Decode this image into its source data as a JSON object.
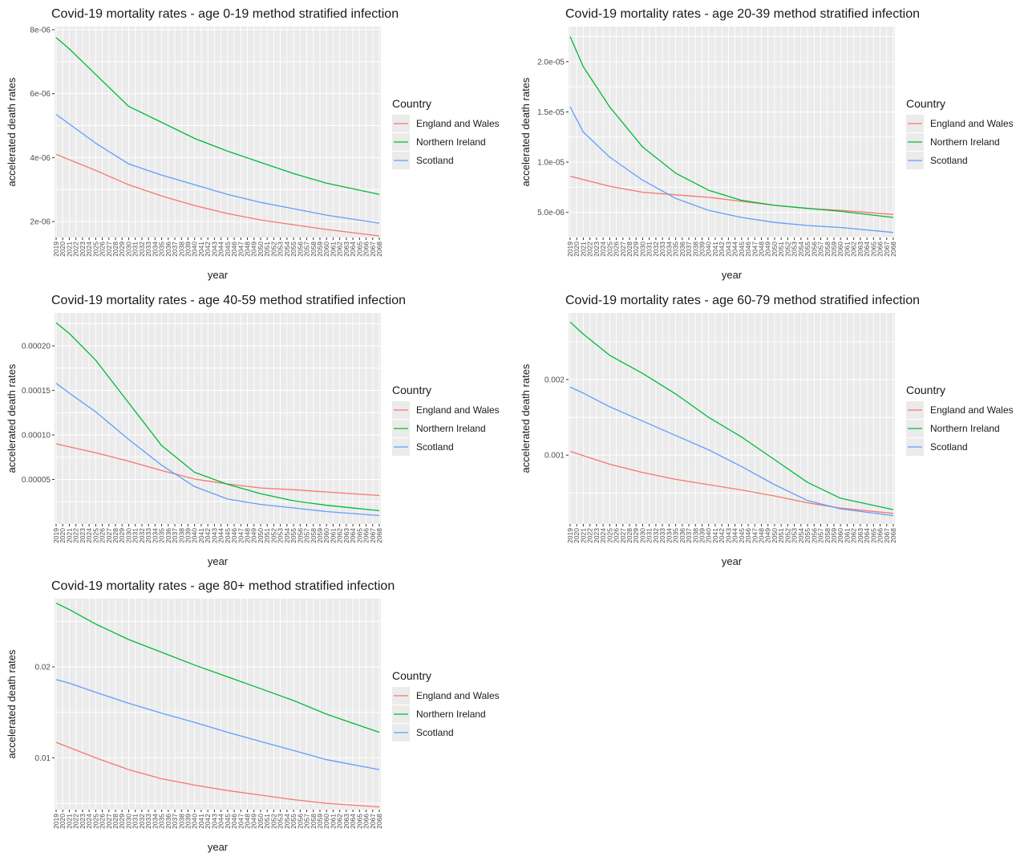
{
  "colors": {
    "panel_bg": "#ebebeb",
    "grid_major": "#ffffff",
    "England and Wales": "#f8766d",
    "Northern Ireland": "#00ba38",
    "Scotland": "#619cff"
  },
  "chart_data": [
    {
      "type": "line",
      "title": "Covid-19 mortality rates - age 0-19 method stratified infection",
      "xlabel": "year",
      "ylabel": "accelerated death rates",
      "legend_title": "Country",
      "legend_position": "right",
      "grid": true,
      "x_start": 2019,
      "x_end": 2068,
      "ylim": [
        1.5e-06,
        8.1e-06
      ],
      "yticks": [
        2e-06,
        4e-06,
        6e-06,
        8e-06
      ],
      "ytick_labels": [
        "2e-06",
        "4e-06",
        "6e-06",
        "8e-06"
      ],
      "series": [
        {
          "name": "England and Wales",
          "points": [
            [
              2019,
              4.1e-06
            ],
            [
              2025,
              3.6e-06
            ],
            [
              2030,
              3.15e-06
            ],
            [
              2035,
              2.8e-06
            ],
            [
              2040,
              2.5e-06
            ],
            [
              2045,
              2.25e-06
            ],
            [
              2050,
              2.05e-06
            ],
            [
              2055,
              1.9e-06
            ],
            [
              2060,
              1.75e-06
            ],
            [
              2068,
              1.55e-06
            ]
          ]
        },
        {
          "name": "Northern Ireland",
          "points": [
            [
              2019,
              7.75e-06
            ],
            [
              2021,
              7.4e-06
            ],
            [
              2025,
              6.6e-06
            ],
            [
              2030,
              5.6e-06
            ],
            [
              2035,
              5.1e-06
            ],
            [
              2040,
              4.6e-06
            ],
            [
              2045,
              4.2e-06
            ],
            [
              2050,
              3.85e-06
            ],
            [
              2055,
              3.5e-06
            ],
            [
              2060,
              3.2e-06
            ],
            [
              2068,
              2.85e-06
            ]
          ]
        },
        {
          "name": "Scotland",
          "points": [
            [
              2019,
              5.35e-06
            ],
            [
              2021,
              5.05e-06
            ],
            [
              2025,
              4.45e-06
            ],
            [
              2030,
              3.8e-06
            ],
            [
              2035,
              3.45e-06
            ],
            [
              2040,
              3.15e-06
            ],
            [
              2045,
              2.85e-06
            ],
            [
              2050,
              2.6e-06
            ],
            [
              2055,
              2.4e-06
            ],
            [
              2060,
              2.2e-06
            ],
            [
              2068,
              1.95e-06
            ]
          ]
        }
      ]
    },
    {
      "type": "line",
      "title": "Covid-19 mortality rates - age 20-39 method stratified infection",
      "xlabel": "year",
      "ylabel": "accelerated death rates",
      "legend_title": "Country",
      "legend_position": "right",
      "grid": true,
      "x_start": 2019,
      "x_end": 2068,
      "ylim": [
        2.5e-06,
        2.35e-05
      ],
      "yticks": [
        5e-06,
        1e-05,
        1.5e-05,
        2e-05
      ],
      "ytick_labels": [
        "5.0e-06",
        "1.0e-05",
        "1.5e-05",
        "2.0e-05"
      ],
      "series": [
        {
          "name": "England and Wales",
          "points": [
            [
              2019,
              8.6e-06
            ],
            [
              2025,
              7.6e-06
            ],
            [
              2030,
              7e-06
            ],
            [
              2035,
              6.75e-06
            ],
            [
              2040,
              6.5e-06
            ],
            [
              2045,
              6.1e-06
            ],
            [
              2050,
              5.7e-06
            ],
            [
              2055,
              5.4e-06
            ],
            [
              2060,
              5.2e-06
            ],
            [
              2068,
              4.8e-06
            ]
          ]
        },
        {
          "name": "Northern Ireland",
          "points": [
            [
              2019,
              2.25e-05
            ],
            [
              2021,
              1.95e-05
            ],
            [
              2025,
              1.55e-05
            ],
            [
              2030,
              1.15e-05
            ],
            [
              2035,
              8.9e-06
            ],
            [
              2040,
              7.2e-06
            ],
            [
              2045,
              6.2e-06
            ],
            [
              2050,
              5.7e-06
            ],
            [
              2055,
              5.4e-06
            ],
            [
              2060,
              5.1e-06
            ],
            [
              2068,
              4.5e-06
            ]
          ]
        },
        {
          "name": "Scotland",
          "points": [
            [
              2019,
              1.55e-05
            ],
            [
              2021,
              1.3e-05
            ],
            [
              2025,
              1.05e-05
            ],
            [
              2030,
              8.2e-06
            ],
            [
              2035,
              6.4e-06
            ],
            [
              2040,
              5.2e-06
            ],
            [
              2045,
              4.5e-06
            ],
            [
              2050,
              4e-06
            ],
            [
              2055,
              3.7e-06
            ],
            [
              2060,
              3.5e-06
            ],
            [
              2068,
              3e-06
            ]
          ]
        }
      ]
    },
    {
      "type": "line",
      "title": "Covid-19 mortality rates - age 40-59 method stratified infection",
      "xlabel": "year",
      "ylabel": "accelerated death rates",
      "legend_title": "Country",
      "legend_position": "right",
      "grid": true,
      "x_start": 2019,
      "x_end": 2068,
      "ylim": [
        0.0,
        0.000237
      ],
      "yticks": [
        5e-05,
        0.0001,
        0.00015,
        0.0002
      ],
      "ytick_labels": [
        "0.00005",
        "0.00010",
        "0.00015",
        "0.00020"
      ],
      "series": [
        {
          "name": "England and Wales",
          "points": [
            [
              2019,
              9e-05
            ],
            [
              2025,
              8e-05
            ],
            [
              2030,
              7.05e-05
            ],
            [
              2035,
              6e-05
            ],
            [
              2040,
              5.05e-05
            ],
            [
              2045,
              4.5e-05
            ],
            [
              2050,
              4.05e-05
            ],
            [
              2055,
              3.85e-05
            ],
            [
              2060,
              3.6e-05
            ],
            [
              2068,
              3.2e-05
            ]
          ]
        },
        {
          "name": "Northern Ireland",
          "points": [
            [
              2019,
              0.000226
            ],
            [
              2021,
              0.000214
            ],
            [
              2025,
              0.000184
            ],
            [
              2030,
              0.000136
            ],
            [
              2035,
              8.8e-05
            ],
            [
              2040,
              5.8e-05
            ],
            [
              2045,
              4.45e-05
            ],
            [
              2050,
              3.4e-05
            ],
            [
              2055,
              2.6e-05
            ],
            [
              2060,
              2.1e-05
            ],
            [
              2068,
              1.5e-05
            ]
          ]
        },
        {
          "name": "Scotland",
          "points": [
            [
              2019,
              0.000158
            ],
            [
              2021,
              0.000147
            ],
            [
              2025,
              0.000126
            ],
            [
              2030,
              9.5e-05
            ],
            [
              2035,
              6.6e-05
            ],
            [
              2040,
              4.2e-05
            ],
            [
              2045,
              2.8e-05
            ],
            [
              2050,
              2.2e-05
            ],
            [
              2055,
              1.8e-05
            ],
            [
              2060,
              1.4e-05
            ],
            [
              2068,
              9.5e-06
            ]
          ]
        }
      ]
    },
    {
      "type": "line",
      "title": "Covid-19 mortality rates - age 60-79 method stratified infection",
      "xlabel": "year",
      "ylabel": "accelerated death rates",
      "legend_title": "Country",
      "legend_position": "right",
      "grid": true,
      "x_start": 2019,
      "x_end": 2068,
      "ylim": [
        9e-05,
        0.00288
      ],
      "yticks": [
        0.001,
        0.002
      ],
      "ytick_labels": [
        "0.001",
        "0.002"
      ],
      "series": [
        {
          "name": "England and Wales",
          "points": [
            [
              2019,
              0.00105
            ],
            [
              2025,
              0.00088
            ],
            [
              2030,
              0.00077
            ],
            [
              2035,
              0.00068
            ],
            [
              2040,
              0.00061
            ],
            [
              2045,
              0.00054
            ],
            [
              2050,
              0.00046
            ],
            [
              2055,
              0.00037
            ],
            [
              2060,
              0.0003
            ],
            [
              2068,
              0.00023
            ]
          ]
        },
        {
          "name": "Northern Ireland",
          "points": [
            [
              2019,
              0.00276
            ],
            [
              2021,
              0.0026
            ],
            [
              2025,
              0.00232
            ],
            [
              2030,
              0.00208
            ],
            [
              2035,
              0.00181
            ],
            [
              2040,
              0.0015
            ],
            [
              2045,
              0.00124
            ],
            [
              2050,
              0.00094
            ],
            [
              2055,
              0.00064
            ],
            [
              2060,
              0.00043
            ],
            [
              2068,
              0.00028
            ]
          ]
        },
        {
          "name": "Scotland",
          "points": [
            [
              2019,
              0.0019
            ],
            [
              2021,
              0.00182
            ],
            [
              2025,
              0.00164
            ],
            [
              2030,
              0.00145
            ],
            [
              2035,
              0.00126
            ],
            [
              2040,
              0.00107
            ],
            [
              2045,
              0.00085
            ],
            [
              2050,
              0.00061
            ],
            [
              2055,
              0.0004
            ],
            [
              2060,
              0.00029
            ],
            [
              2068,
              0.0002
            ]
          ]
        }
      ]
    },
    {
      "type": "line",
      "title": "Covid-19 mortality rates - age 80+ method stratified infection",
      "xlabel": "year",
      "ylabel": "accelerated death rates",
      "legend_title": "Country",
      "legend_position": "right",
      "grid": true,
      "x_start": 2019,
      "x_end": 2068,
      "ylim": [
        0.0043,
        0.0275
      ],
      "yticks": [
        0.01,
        0.02
      ],
      "ytick_labels": [
        "0.01",
        "0.02"
      ],
      "series": [
        {
          "name": "England and Wales",
          "points": [
            [
              2019,
              0.0117
            ],
            [
              2025,
              0.01
            ],
            [
              2030,
              0.0087
            ],
            [
              2035,
              0.0077
            ],
            [
              2040,
              0.007
            ],
            [
              2045,
              0.0064
            ],
            [
              2050,
              0.0059
            ],
            [
              2055,
              0.0054
            ],
            [
              2060,
              0.005
            ],
            [
              2068,
              0.0046
            ]
          ]
        },
        {
          "name": "Northern Ireland",
          "points": [
            [
              2019,
              0.027
            ],
            [
              2021,
              0.0263
            ],
            [
              2025,
              0.0247
            ],
            [
              2030,
              0.023
            ],
            [
              2035,
              0.0216
            ],
            [
              2040,
              0.0202
            ],
            [
              2045,
              0.0189
            ],
            [
              2050,
              0.0176
            ],
            [
              2055,
              0.0163
            ],
            [
              2060,
              0.0148
            ],
            [
              2068,
              0.0128
            ]
          ]
        },
        {
          "name": "Scotland",
          "points": [
            [
              2019,
              0.0186
            ],
            [
              2021,
              0.0182
            ],
            [
              2025,
              0.0172
            ],
            [
              2030,
              0.016
            ],
            [
              2035,
              0.0149
            ],
            [
              2040,
              0.0139
            ],
            [
              2045,
              0.0128
            ],
            [
              2050,
              0.0118
            ],
            [
              2055,
              0.0108
            ],
            [
              2060,
              0.0098
            ],
            [
              2068,
              0.0087
            ]
          ]
        }
      ]
    }
  ]
}
